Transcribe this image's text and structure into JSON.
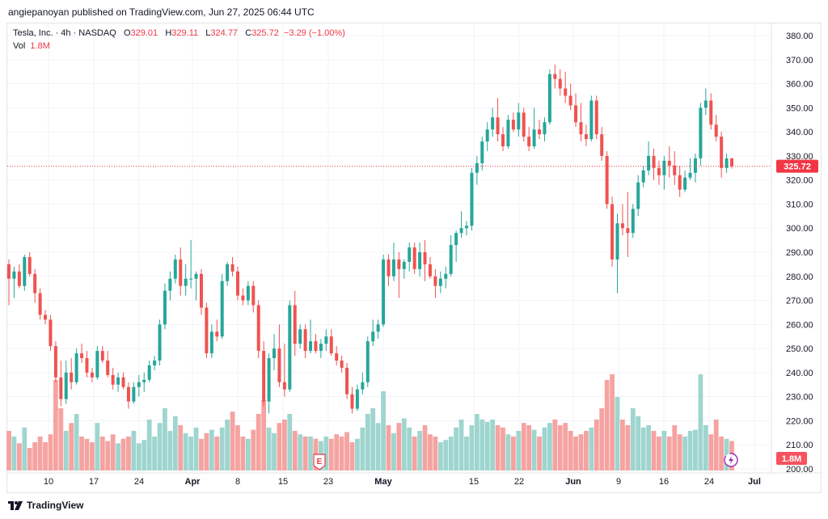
{
  "header": {
    "publisher": "angiepanoyan published on TradingView.com, Jun 27, 2025 06:44 UTC"
  },
  "legend": {
    "symbol": "Tesla, Inc. · 4h · NASDAQ",
    "open_label": "O",
    "open": "329.01",
    "high_label": "H",
    "high": "329.11",
    "low_label": "L",
    "low": "324.77",
    "close_label": "C",
    "close": "325.72",
    "change": "−3.29 (−1.00%)",
    "vol_label": "Vol",
    "vol": "1.8M"
  },
  "footer": {
    "brand": "TradingView"
  },
  "earnings_marker": "E",
  "chart_data": {
    "type": "candlestick",
    "title": "Tesla, Inc. · 4h · NASDAQ",
    "y_axis": {
      "min": 200,
      "max": 383,
      "ticks": [
        "380.00",
        "370.00",
        "360.00",
        "350.00",
        "340.00",
        "330.00",
        "320.00",
        "310.00",
        "300.00",
        "290.00",
        "280.00",
        "270.00",
        "260.00",
        "250.00",
        "240.00",
        "230.00",
        "220.00",
        "210.00",
        "200.00"
      ]
    },
    "x_tick_labels": [
      "10",
      "17",
      "24",
      "Apr",
      "8",
      "15",
      "23",
      "May",
      "15",
      "22",
      "Jun",
      "9",
      "16",
      "24",
      "Jul"
    ],
    "last_price_label": "325.72",
    "last_volume_label": "1.8M",
    "colors": {
      "up": "#26a69a",
      "down": "#ef5350",
      "vol_up": "#9fd5cf",
      "vol_down": "#f5a3a1",
      "price_line": "#f23645",
      "vol_badge": "#f7525f"
    },
    "anchors": [
      {
        "x": "10",
        "price": 240
      },
      {
        "x": "17",
        "price": 230
      },
      {
        "x": "24",
        "price": 280
      },
      {
        "x": "Apr",
        "price": 283
      },
      {
        "x": "8",
        "price": 265
      },
      {
        "x": "15",
        "price": 250
      },
      {
        "x": "23",
        "price": 262
      },
      {
        "x": "May",
        "price": 283
      },
      {
        "x": "15",
        "price": 343
      },
      {
        "x": "22",
        "price": 340
      },
      {
        "x": "Jun",
        "price": 338
      },
      {
        "x": "9",
        "price": 300
      },
      {
        "x": "16",
        "price": 323
      },
      {
        "x": "24",
        "price": 345
      }
    ],
    "ohlcv": [
      [
        285,
        287,
        268,
        279,
        0.35
      ],
      [
        279,
        284,
        271,
        282,
        0.3
      ],
      [
        282,
        285,
        275,
        276,
        0.24
      ],
      [
        276,
        289,
        274,
        288,
        0.38
      ],
      [
        288,
        290,
        280,
        281,
        0.2
      ],
      [
        281,
        283,
        269,
        273,
        0.25
      ],
      [
        273,
        275,
        262,
        264,
        0.3
      ],
      [
        264,
        266,
        260,
        262,
        0.25
      ],
      [
        262,
        264,
        249,
        251,
        0.32
      ],
      [
        251,
        253,
        236,
        238,
        0.8
      ],
      [
        238,
        245,
        226,
        229,
        0.55
      ],
      [
        229,
        245,
        227,
        240,
        0.35
      ],
      [
        240,
        246,
        233,
        236,
        0.42
      ],
      [
        236,
        250,
        235,
        248,
        0.5
      ],
      [
        248,
        252,
        244,
        246,
        0.3
      ],
      [
        246,
        249,
        238,
        240,
        0.28
      ],
      [
        240,
        242,
        236,
        238,
        0.25
      ],
      [
        238,
        251,
        237,
        249,
        0.42
      ],
      [
        249,
        251,
        244,
        245,
        0.3
      ],
      [
        245,
        249,
        238,
        239,
        0.26
      ],
      [
        239,
        242,
        233,
        235,
        0.32
      ],
      [
        235,
        240,
        232,
        238,
        0.24
      ],
      [
        238,
        240,
        233,
        234,
        0.28
      ],
      [
        234,
        236,
        225,
        228,
        0.3
      ],
      [
        228,
        236,
        227,
        234,
        0.35
      ],
      [
        234,
        239,
        230,
        236,
        0.24
      ],
      [
        236,
        240,
        232,
        237,
        0.27
      ],
      [
        237,
        245,
        236,
        243,
        0.45
      ],
      [
        243,
        247,
        241,
        245,
        0.3
      ],
      [
        245,
        262,
        243,
        260,
        0.42
      ],
      [
        260,
        277,
        258,
        274,
        0.55
      ],
      [
        274,
        282,
        270,
        279,
        0.35
      ],
      [
        279,
        289,
        277,
        287,
        0.48
      ],
      [
        287,
        292,
        272,
        276,
        0.4
      ],
      [
        276,
        285,
        272,
        279,
        0.33
      ],
      [
        279,
        295,
        275,
        279,
        0.3
      ],
      [
        279,
        282,
        270,
        281,
        0.38
      ],
      [
        281,
        283,
        264,
        267,
        0.28
      ],
      [
        267,
        269,
        246,
        248,
        0.33
      ],
      [
        248,
        260,
        246,
        257,
        0.36
      ],
      [
        257,
        262,
        253,
        255,
        0.3
      ],
      [
        255,
        281,
        254,
        278,
        0.38
      ],
      [
        278,
        286,
        276,
        285,
        0.45
      ],
      [
        285,
        288,
        280,
        282,
        0.52
      ],
      [
        282,
        284,
        270,
        272,
        0.4
      ],
      [
        272,
        275,
        268,
        270,
        0.3
      ],
      [
        270,
        278,
        268,
        276,
        0.28
      ],
      [
        276,
        278,
        265,
        268,
        0.36
      ],
      [
        268,
        270,
        246,
        249,
        0.5
      ],
      [
        249,
        253,
        226,
        228,
        0.62
      ],
      [
        228,
        248,
        223,
        246,
        0.38
      ],
      [
        246,
        256,
        241,
        250,
        0.33
      ],
      [
        250,
        260,
        234,
        236,
        0.42
      ],
      [
        236,
        252,
        230,
        233,
        0.45
      ],
      [
        233,
        270,
        232,
        268,
        0.5
      ],
      [
        268,
        274,
        247,
        252,
        0.35
      ],
      [
        252,
        260,
        250,
        258,
        0.32
      ],
      [
        258,
        260,
        246,
        249,
        0.3
      ],
      [
        249,
        262,
        248,
        253,
        0.3
      ],
      [
        253,
        256,
        248,
        249,
        0.28
      ],
      [
        249,
        254,
        246,
        252,
        0.26
      ],
      [
        252,
        258,
        249,
        255,
        0.3
      ],
      [
        255,
        258,
        247,
        248,
        0.28
      ],
      [
        248,
        251,
        243,
        245,
        0.32
      ],
      [
        245,
        247,
        240,
        242,
        0.3
      ],
      [
        242,
        244,
        229,
        231,
        0.34
      ],
      [
        231,
        234,
        223,
        225,
        0.25
      ],
      [
        225,
        235,
        224,
        233,
        0.28
      ],
      [
        233,
        240,
        231,
        236,
        0.38
      ],
      [
        236,
        255,
        234,
        253,
        0.5
      ],
      [
        253,
        262,
        251,
        257,
        0.55
      ],
      [
        257,
        262,
        254,
        260,
        0.42
      ],
      [
        260,
        289,
        259,
        287,
        0.7
      ],
      [
        287,
        289,
        276,
        280,
        0.4
      ],
      [
        280,
        294,
        278,
        287,
        0.33
      ],
      [
        287,
        290,
        271,
        283,
        0.42
      ],
      [
        283,
        287,
        279,
        286,
        0.46
      ],
      [
        286,
        294,
        282,
        292,
        0.38
      ],
      [
        292,
        294,
        281,
        283,
        0.3
      ],
      [
        283,
        294,
        280,
        290,
        0.35
      ],
      [
        290,
        295,
        278,
        285,
        0.4
      ],
      [
        285,
        288,
        279,
        280,
        0.32
      ],
      [
        280,
        283,
        271,
        276,
        0.3
      ],
      [
        276,
        282,
        273,
        279,
        0.25
      ],
      [
        279,
        284,
        275,
        281,
        0.27
      ],
      [
        281,
        297,
        280,
        293,
        0.3
      ],
      [
        293,
        299,
        286,
        298,
        0.38
      ],
      [
        298,
        307,
        296,
        300,
        0.45
      ],
      [
        300,
        303,
        297,
        301,
        0.3
      ],
      [
        301,
        325,
        299,
        323,
        0.4
      ],
      [
        323,
        330,
        318,
        327,
        0.5
      ],
      [
        327,
        338,
        324,
        336,
        0.45
      ],
      [
        336,
        344,
        332,
        341,
        0.43
      ],
      [
        341,
        350,
        338,
        346,
        0.45
      ],
      [
        346,
        354,
        336,
        339,
        0.4
      ],
      [
        339,
        342,
        332,
        334,
        0.38
      ],
      [
        334,
        347,
        333,
        345,
        0.32
      ],
      [
        345,
        348,
        340,
        341,
        0.3
      ],
      [
        341,
        352,
        338,
        348,
        0.35
      ],
      [
        348,
        350,
        336,
        338,
        0.42
      ],
      [
        338,
        342,
        332,
        334,
        0.4
      ],
      [
        334,
        350,
        333,
        341,
        0.36
      ],
      [
        341,
        345,
        337,
        339,
        0.3
      ],
      [
        339,
        346,
        336,
        344,
        0.38
      ],
      [
        344,
        366,
        343,
        364,
        0.42
      ],
      [
        364,
        368,
        358,
        362,
        0.45
      ],
      [
        362,
        366,
        355,
        358,
        0.4
      ],
      [
        358,
        365,
        352,
        355,
        0.42
      ],
      [
        355,
        360,
        349,
        351,
        0.35
      ],
      [
        351,
        356,
        342,
        344,
        0.3
      ],
      [
        344,
        352,
        336,
        339,
        0.32
      ],
      [
        339,
        343,
        334,
        337,
        0.35
      ],
      [
        337,
        355,
        336,
        353,
        0.38
      ],
      [
        353,
        355,
        337,
        339,
        0.45
      ],
      [
        339,
        342,
        328,
        330,
        0.55
      ],
      [
        330,
        332,
        308,
        310,
        0.8
      ],
      [
        310,
        313,
        284,
        287,
        0.85
      ],
      [
        287,
        306,
        273,
        302,
        0.65
      ],
      [
        302,
        310,
        297,
        300,
        0.45
      ],
      [
        300,
        315,
        288,
        298,
        0.4
      ],
      [
        298,
        310,
        296,
        308,
        0.55
      ],
      [
        308,
        322,
        305,
        319,
        0.48
      ],
      [
        319,
        326,
        317,
        324,
        0.38
      ],
      [
        324,
        336,
        322,
        330,
        0.4
      ],
      [
        330,
        333,
        320,
        325,
        0.35
      ],
      [
        325,
        328,
        318,
        322,
        0.3
      ],
      [
        322,
        330,
        316,
        328,
        0.35
      ],
      [
        328,
        334,
        321,
        326,
        0.3
      ],
      [
        326,
        332,
        318,
        322,
        0.4
      ],
      [
        322,
        326,
        313,
        316,
        0.32
      ],
      [
        316,
        324,
        315,
        321,
        0.3
      ],
      [
        321,
        329,
        320,
        323,
        0.35
      ],
      [
        323,
        331,
        319,
        329,
        0.36
      ],
      [
        329,
        352,
        326,
        350,
        0.85
      ],
      [
        350,
        358,
        347,
        353,
        0.4
      ],
      [
        353,
        356,
        341,
        343,
        0.32
      ],
      [
        343,
        347,
        336,
        338,
        0.45
      ],
      [
        338,
        340,
        321,
        325,
        0.3
      ],
      [
        325,
        331,
        323,
        329,
        0.28
      ],
      [
        329,
        329.11,
        324.77,
        325.72,
        0.26
      ]
    ]
  }
}
